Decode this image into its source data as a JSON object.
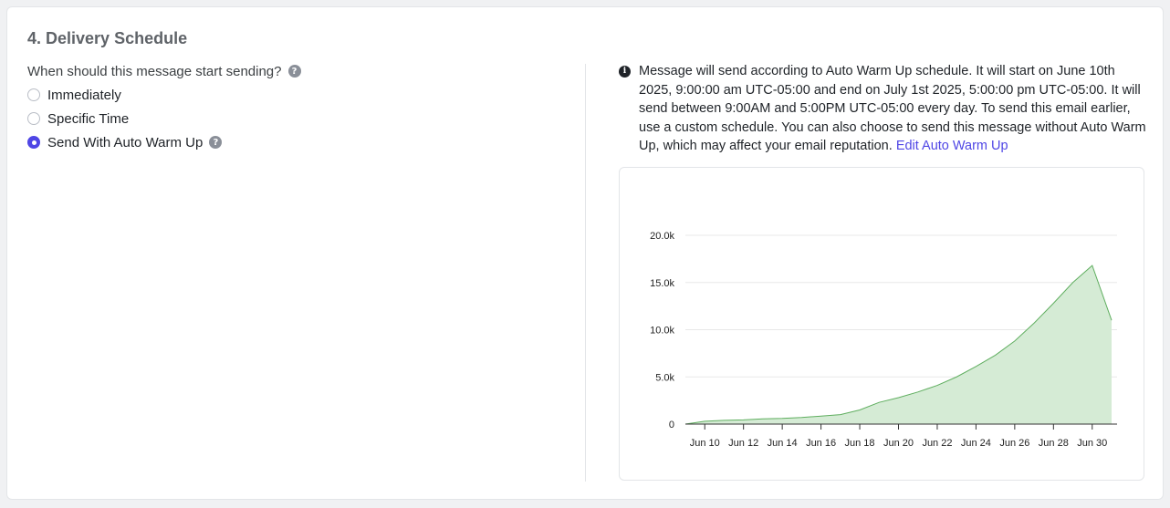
{
  "section": {
    "title": "4. Delivery Schedule"
  },
  "question": {
    "label": "When should this message start sending?",
    "help_icon": "question-circle-icon"
  },
  "options": [
    {
      "label": "Immediately",
      "selected": false
    },
    {
      "label": "Specific Time",
      "selected": false
    },
    {
      "label": "Send With Auto Warm Up",
      "selected": true,
      "help_icon": "question-circle-icon"
    }
  ],
  "info": {
    "icon": "info-circle-icon",
    "message": "Message will send according to Auto Warm Up schedule. It will start on June 10th 2025, 9:00:00 am UTC-05:00 and end on July 1st 2025, 5:00:00 pm UTC-05:00. It will send between 9:00AM and 5:00PM UTC-05:00 every day. To send this email earlier, use a custom schedule. You can also choose to send this message without Auto Warm Up, which may affect your email reputation.",
    "link_label": "Edit Auto Warm Up"
  },
  "colors": {
    "accent": "#4f46e5",
    "area_fill": "#d5ebd5",
    "area_stroke": "#5fae5f"
  },
  "chart_data": {
    "type": "area",
    "x": [
      "Jun 9",
      "Jun 10",
      "Jun 11",
      "Jun 12",
      "Jun 13",
      "Jun 14",
      "Jun 15",
      "Jun 16",
      "Jun 17",
      "Jun 18",
      "Jun 19",
      "Jun 20",
      "Jun 21",
      "Jun 22",
      "Jun 23",
      "Jun 24",
      "Jun 25",
      "Jun 26",
      "Jun 27",
      "Jun 28",
      "Jun 29",
      "Jun 30",
      "Jul 1"
    ],
    "series": [
      {
        "values": [
          0,
          300,
          400,
          450,
          550,
          600,
          700,
          850,
          1000,
          1500,
          2300,
          2800,
          3400,
          4100,
          5000,
          6100,
          7300,
          8800,
          10700,
          12800,
          15000,
          16800,
          11000
        ]
      }
    ],
    "x_tick_labels": [
      "Jun 10",
      "Jun 12",
      "Jun 14",
      "Jun 16",
      "Jun 18",
      "Jun 20",
      "Jun 22",
      "Jun 24",
      "Jun 26",
      "Jun 28",
      "Jun 30"
    ],
    "y_tick_labels": [
      "0",
      "5.0k",
      "10.0k",
      "15.0k",
      "20.0k"
    ],
    "y_ticks": [
      0,
      5000,
      10000,
      15000,
      20000
    ],
    "ylim": [
      0,
      20000
    ],
    "grid": true,
    "title": "",
    "xlabel": "",
    "ylabel": ""
  }
}
